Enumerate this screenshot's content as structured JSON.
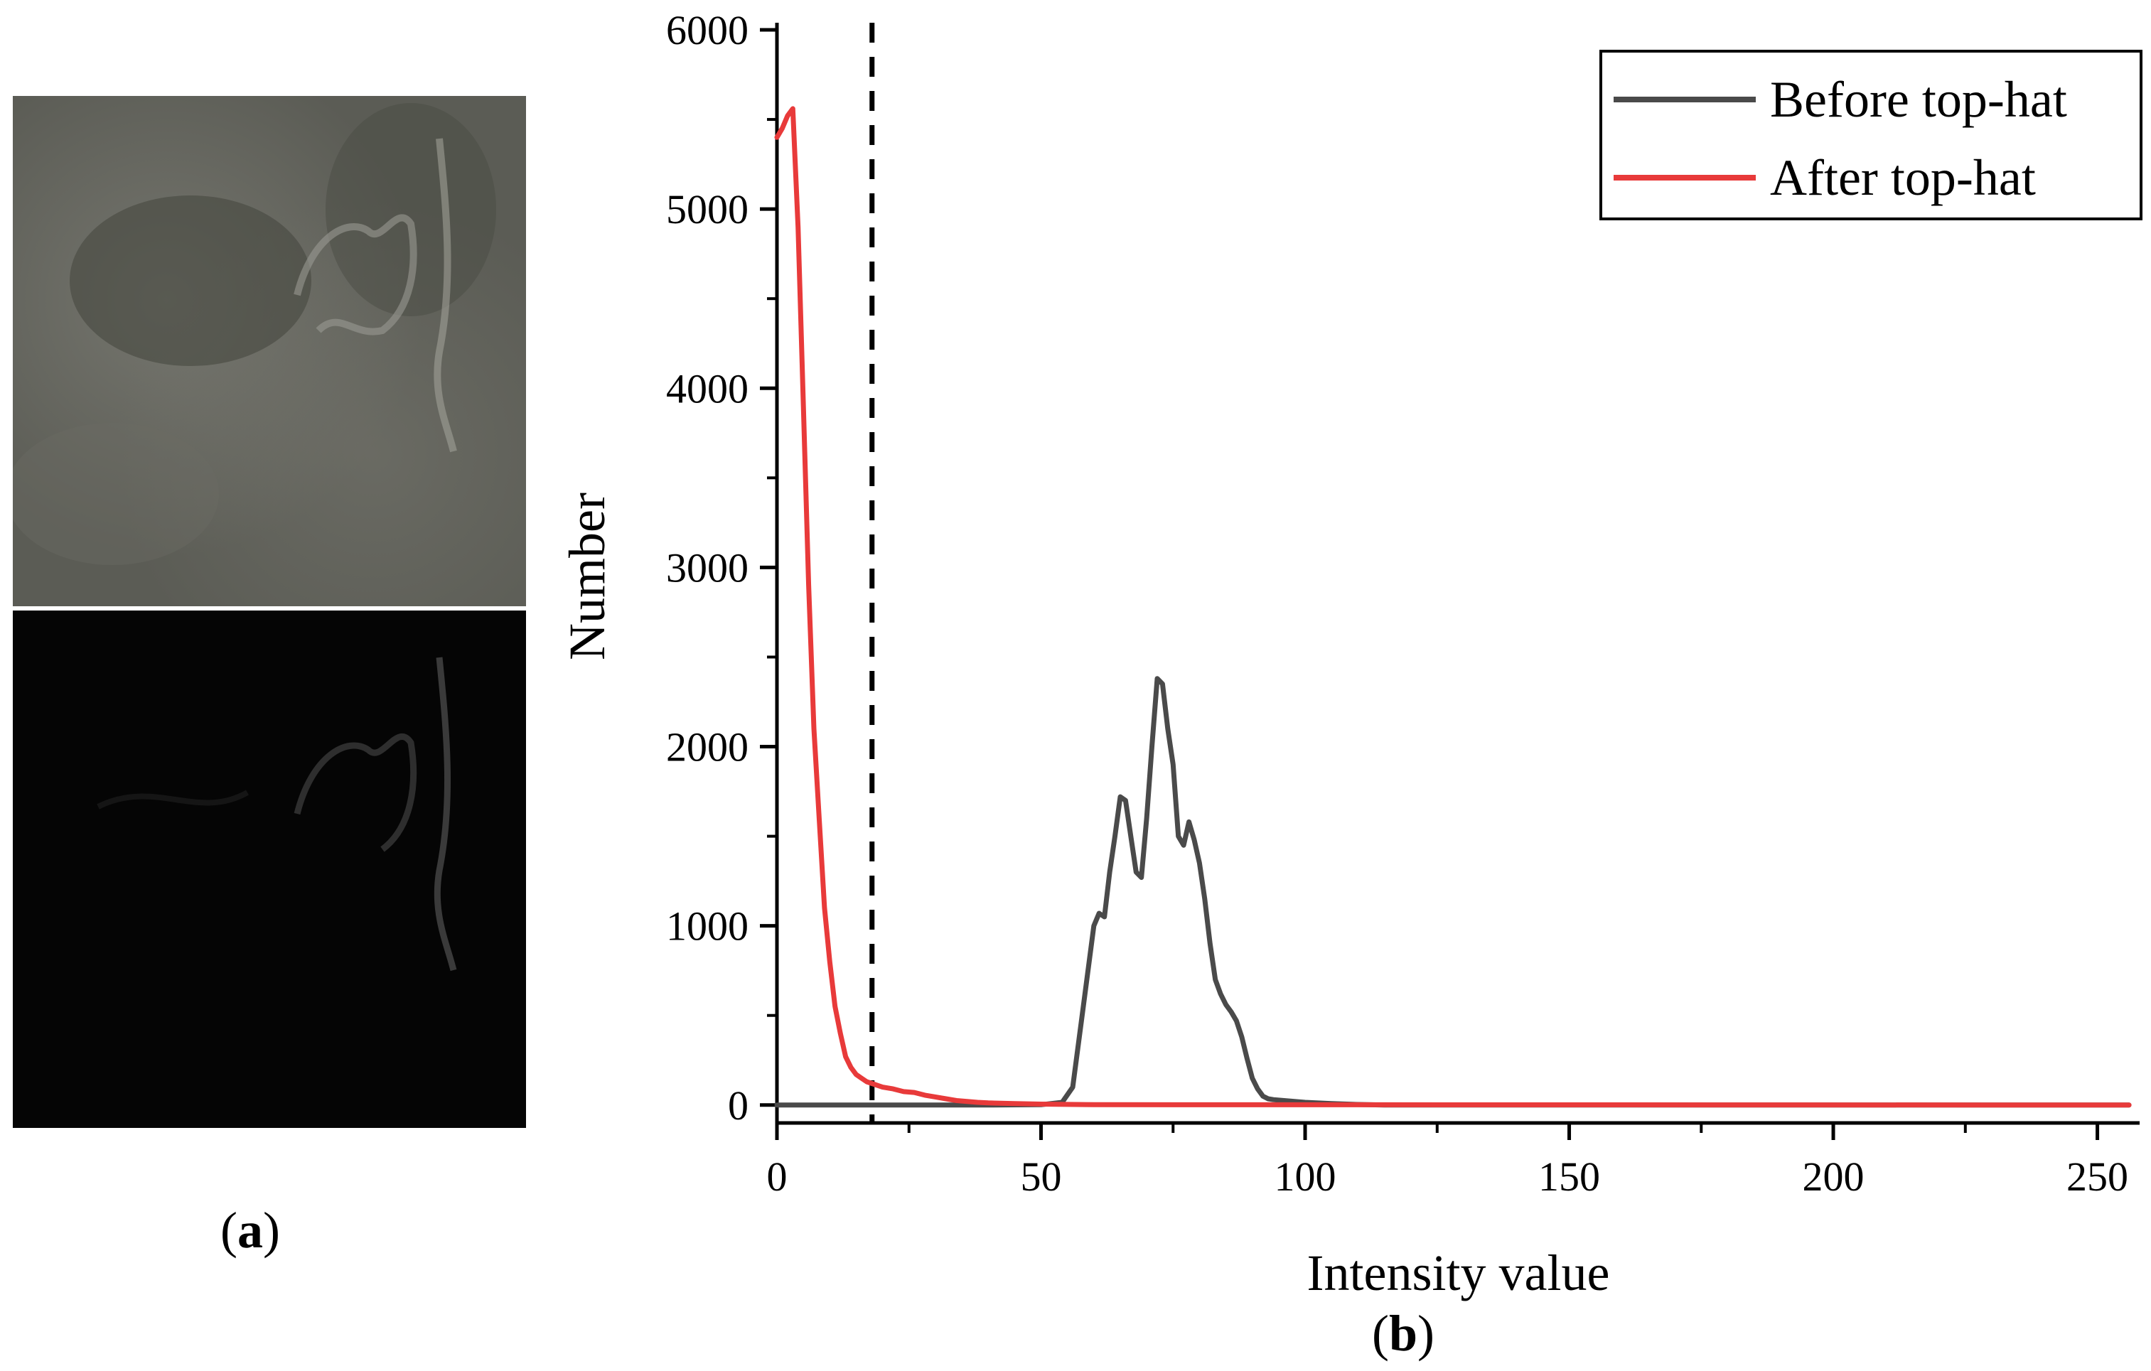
{
  "panel_a": {
    "label": "a"
  },
  "panel_b": {
    "label": "b"
  },
  "chart_data": {
    "type": "line",
    "xlabel": "Intensity value",
    "ylabel": "Number",
    "xlim": [
      0,
      258
    ],
    "ylim": [
      -100,
      6000
    ],
    "xticks": [
      0,
      50,
      100,
      150,
      200,
      250
    ],
    "yticks": [
      0,
      1000,
      2000,
      3000,
      4000,
      5000,
      6000
    ],
    "threshold_x": 18,
    "legend_position": "top-right",
    "series": [
      {
        "name": "Before top-hat",
        "color": "#4a4a4a",
        "x": [
          0,
          40,
          50,
          54,
          56,
          58,
          60,
          61,
          62,
          63,
          64,
          65,
          66,
          67,
          68,
          69,
          70,
          71,
          72,
          73,
          74,
          75,
          76,
          77,
          78,
          79,
          80,
          81,
          82,
          83,
          84,
          85,
          86,
          87,
          88,
          89,
          90,
          91,
          92,
          93,
          94,
          96,
          98,
          100,
          105,
          110,
          115,
          256
        ],
        "y": [
          0,
          0,
          2,
          15,
          100,
          550,
          1000,
          1070,
          1050,
          1300,
          1500,
          1720,
          1700,
          1500,
          1300,
          1270,
          1600,
          2000,
          2380,
          2350,
          2100,
          1900,
          1500,
          1450,
          1580,
          1480,
          1350,
          1150,
          900,
          700,
          620,
          560,
          520,
          470,
          380,
          260,
          150,
          90,
          50,
          35,
          30,
          25,
          20,
          15,
          8,
          3,
          0,
          0
        ]
      },
      {
        "name": "After top-hat",
        "color": "#e83a3a",
        "x": [
          0,
          1,
          2,
          3,
          4,
          5,
          6,
          7,
          8,
          9,
          10,
          11,
          12,
          13,
          14,
          15,
          16,
          17,
          18,
          19,
          20,
          22,
          24,
          26,
          28,
          30,
          32,
          34,
          36,
          38,
          40,
          45,
          50,
          60,
          256
        ],
        "y": [
          5400,
          5450,
          5520,
          5560,
          4900,
          3900,
          2900,
          2100,
          1600,
          1100,
          800,
          550,
          400,
          270,
          210,
          170,
          150,
          130,
          120,
          110,
          100,
          90,
          75,
          70,
          55,
          45,
          35,
          25,
          20,
          15,
          12,
          8,
          5,
          2,
          0
        ]
      }
    ]
  }
}
